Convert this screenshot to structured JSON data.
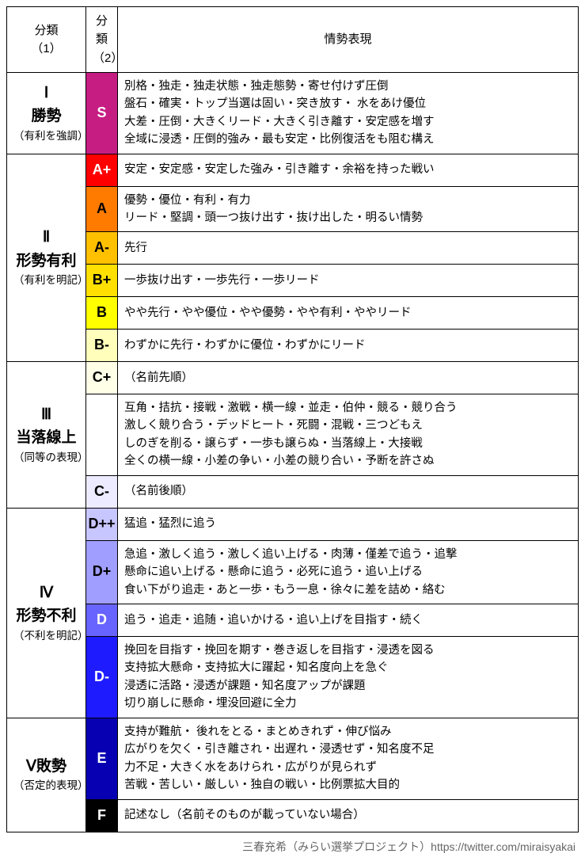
{
  "header": {
    "col1": "分類\n（1）",
    "col2": "分類\n（2）",
    "col3": "情勢表現"
  },
  "groups": [
    {
      "num": "Ⅰ",
      "title": "勝勢",
      "subtitle": "（有利を強調）",
      "rows": [
        {
          "grade": "S",
          "bg": "#c61d83",
          "fg": "#ffffff",
          "desc": "別格・独走・独走状態・独走態勢・寄せ付けず圧倒\n盤石・確実・トップ当選は固い・突き放す・ 水をあけ優位\n大差・圧倒・大きくリード・大きく引き離す・安定感を増す\n全域に浸透・圧倒的強み・最も安定・比例復活をも阻む構え"
        }
      ]
    },
    {
      "num": "Ⅱ",
      "title": "形勢有利",
      "subtitle": "（有利を明記）",
      "rows": [
        {
          "grade": "A+",
          "bg": "#ff0000",
          "fg": "#ffffff",
          "desc": "安定・安定感・安定した強み・引き離す・余裕を持った戦い"
        },
        {
          "grade": "A",
          "bg": "#ff7b00",
          "fg": "#000000",
          "desc": "優勢・優位・有利・有力\nリード・堅調・頭一つ抜け出す・抜け出した・明るい情勢"
        },
        {
          "grade": "A-",
          "bg": "#ffc000",
          "fg": "#000000",
          "desc": "先行"
        },
        {
          "grade": "B+",
          "bg": "#ffe000",
          "fg": "#000000",
          "desc": "一歩抜け出す・一歩先行・一歩リード"
        },
        {
          "grade": "B",
          "bg": "#ffff00",
          "fg": "#000000",
          "desc": "やや先行・やや優位・やや優勢・やや有利・ややリード"
        },
        {
          "grade": "B-",
          "bg": "#ffffbb",
          "fg": "#000000",
          "desc": "わずかに先行・わずかに優位・わずかにリード"
        }
      ]
    },
    {
      "num": "Ⅲ",
      "title": "当落線上",
      "subtitle": "（同等の表現）",
      "rows": [
        {
          "grade": "C+",
          "bg": "#ffffe8",
          "fg": "#000000",
          "desc": "（名前先順）"
        },
        {
          "grade": "",
          "bg": "#ffffff",
          "fg": "#000000",
          "desc": "互角・拮抗・接戦・激戦・横一線・並走・伯仲・競る・競り合う\n激しく競り合う・デッドヒート・死闘・混戦・三つどもえ\nしのぎを削る・譲らず・一歩も譲らぬ・当落線上・大接戦\n全くの横一線・小差の争い・小差の競り合い・予断を許さぬ"
        },
        {
          "grade": "C-",
          "bg": "#ecebff",
          "fg": "#000000",
          "desc": "（名前後順）"
        }
      ]
    },
    {
      "num": "Ⅳ",
      "title": "形勢不利",
      "subtitle": "（不利を明記）",
      "rows": [
        {
          "grade": "D++",
          "bg": "#c8c6ff",
          "fg": "#000000",
          "desc": "猛追・猛烈に追う"
        },
        {
          "grade": "D+",
          "bg": "#a09eff",
          "fg": "#000000",
          "desc": "急追・激しく追う・激しく追い上げる・肉薄・僅差で追う・追撃\n懸命に追い上げる・懸命に追う・必死に追う・追い上げる\n食い下がり追走・あと一歩・もう一息・徐々に差を詰め・絡む"
        },
        {
          "grade": "D",
          "bg": "#6864ff",
          "fg": "#ffffff",
          "desc": "追う・追走・追随・追いかける・追い上げを目指す・続く"
        },
        {
          "grade": "D-",
          "bg": "#1e1cff",
          "fg": "#ffffff",
          "desc": "挽回を目指す・挽回を期す・巻き返しを目指す・浸透を図る\n支持拡大懸命・支持拡大に躍起・知名度向上を急ぐ\n浸透に活路・浸透が課題・知名度アップが課題\n切り崩しに懸命・埋没回避に全力"
        }
      ]
    },
    {
      "num": "Ⅴ",
      "title": "敗勢",
      "subtitle": "（否定的表現）",
      "rows": [
        {
          "grade": "E",
          "bg": "#0600b2",
          "fg": "#ffffff",
          "desc": "支持が難航・ 後れをとる・まとめきれず・伸び悩み\n広がりを欠く・引き離され・出遅れ・浸透せず・知名度不足\n力不足・大きく水をあけられ・広がりが見られず\n苦戦・苦しい・厳しい・独自の戦い・比例票拡大目的"
        },
        {
          "grade": "F",
          "bg": "#000000",
          "fg": "#ffffff",
          "desc": "記述なし（名前そのものが載っていない場合）"
        }
      ]
    }
  ],
  "footer": "三春充希（みらい選挙プロジェクト）https://twitter.com/miraisyakai"
}
